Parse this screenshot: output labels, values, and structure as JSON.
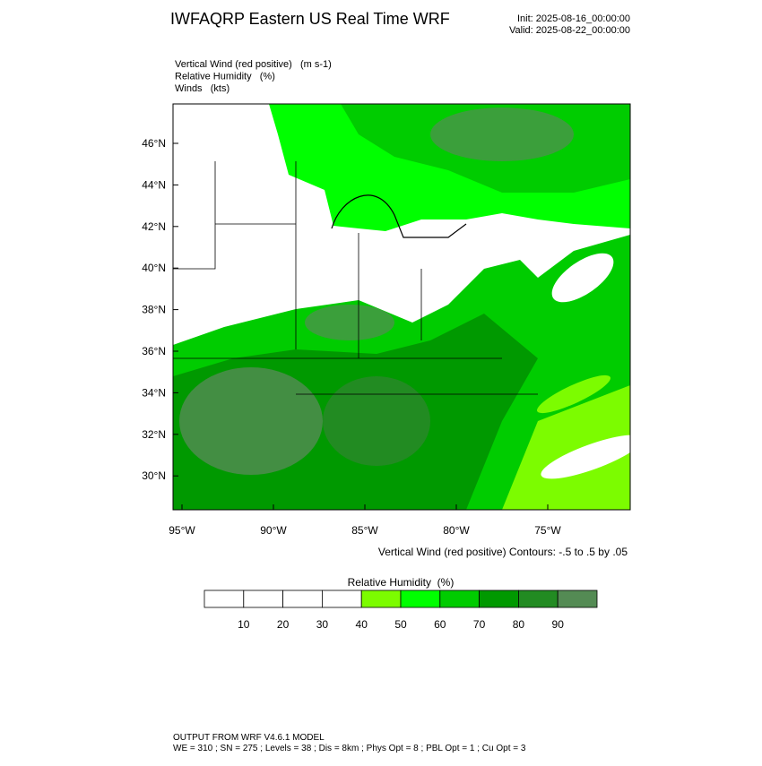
{
  "header": {
    "title": "IWFAQRP Eastern US Real Time WRF",
    "init": "Init: 2025-08-16_00:00:00",
    "valid": "Valid: 2025-08-22_00:00:00"
  },
  "fields": [
    "Vertical Wind (red positive)   (m s-1)",
    "Relative Humidity   (%)",
    "Winds   (kts)"
  ],
  "map": {
    "lat_labels": [
      "46°N",
      "44°N",
      "42°N",
      "40°N",
      "38°N",
      "36°N",
      "34°N",
      "32°N",
      "30°N"
    ],
    "lon_labels": [
      "95°W",
      "90°W",
      "85°W",
      "80°W",
      "75°W"
    ],
    "contour_note": "Vertical Wind (red positive) Contours: -.5 to .5 by .05"
  },
  "colorbar": {
    "title": "Relative Humidity  (%)",
    "colors": [
      "#ffffff",
      "#ffffff",
      "#ffffff",
      "#ffffff",
      "#7cfc00",
      "#00ff00",
      "#00cc00",
      "#009900",
      "#228b22",
      "#548b54"
    ],
    "ticks": [
      10,
      20,
      30,
      40,
      50,
      60,
      70,
      80,
      90
    ]
  },
  "footer": [
    "OUTPUT FROM WRF V4.6.1 MODEL",
    "WE = 310 ; SN = 275 ; Levels = 38 ; Dis = 8km ; Phys Opt = 8 ; PBL Opt = 1 ; Cu Opt = 3"
  ]
}
